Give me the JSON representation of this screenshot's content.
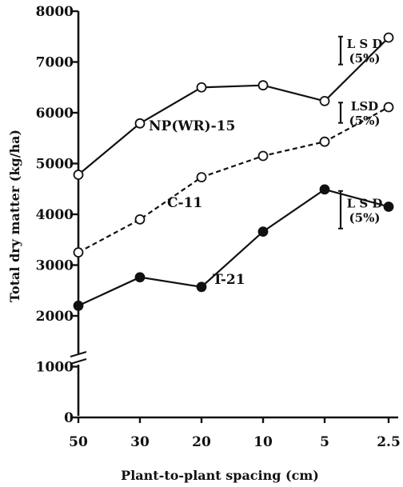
{
  "chart_data": {
    "type": "line",
    "title": "",
    "xlabel": "Plant-to-plant spacing (cm)",
    "ylabel": "Total dry matter (kg/ha)",
    "x": [
      "50",
      "30",
      "20",
      "10",
      "5",
      "2.5"
    ],
    "yticks": [
      "0",
      "1000",
      "2000",
      "3000",
      "4000",
      "5000",
      "6000",
      "7000",
      "8000"
    ],
    "ylim": [
      0,
      8000
    ],
    "grid": false,
    "series": [
      {
        "name": "NP(WR)-15",
        "marker": "open-circle",
        "line": "solid",
        "values": [
          4780,
          5790,
          6500,
          6540,
          6230,
          7480
        ]
      },
      {
        "name": "C-11",
        "marker": "open-circle",
        "line": "dashed",
        "values": [
          3250,
          3900,
          4730,
          5150,
          5430,
          6110
        ]
      },
      {
        "name": "T-21",
        "marker": "filled-circle",
        "line": "solid",
        "values": [
          2200,
          2760,
          2570,
          3660,
          4490,
          4150
        ]
      }
    ],
    "lsd_bars": [
      {
        "label_top": "L S D",
        "label_bottom": "(5%)",
        "low": 6950,
        "high": 7500
      },
      {
        "label_top": "LSD",
        "label_bottom": "(5%)",
        "low": 5800,
        "high": 6200
      },
      {
        "label_top": "L S D",
        "label_bottom": "(5%)",
        "low": 3720,
        "high": 4460
      }
    ]
  },
  "colors": {
    "ink": "#111111",
    "background": "#ffffff"
  }
}
